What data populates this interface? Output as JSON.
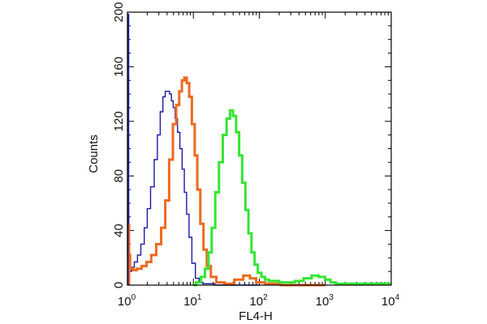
{
  "chart_data": {
    "type": "line",
    "title": "",
    "xlabel": "FL4-H",
    "ylabel": "Counts",
    "xscale": "log",
    "xlim": [
      1,
      10000
    ],
    "ylim": [
      0,
      200
    ],
    "x_ticks": [
      {
        "base": "10",
        "exp": "0",
        "value": 1
      },
      {
        "base": "10",
        "exp": "1",
        "value": 10
      },
      {
        "base": "10",
        "exp": "2",
        "value": 100
      },
      {
        "base": "10",
        "exp": "3",
        "value": 1000
      },
      {
        "base": "10",
        "exp": "4",
        "value": 10000
      }
    ],
    "y_ticks": [
      {
        "label": "0",
        "value": 0
      },
      {
        "label": "40",
        "value": 40
      },
      {
        "label": "80",
        "value": 80
      },
      {
        "label": "120",
        "value": 120
      },
      {
        "label": "160",
        "value": 160
      },
      {
        "label": "200",
        "value": 200
      }
    ],
    "grid": false,
    "legend": "none",
    "series": [
      {
        "color": "#1a1aa8",
        "stroke": "thin",
        "x": [
          1.0,
          1.1,
          1.2,
          1.35,
          1.5,
          1.7,
          1.9,
          2.1,
          2.4,
          2.7,
          3.0,
          3.3,
          3.6,
          3.9,
          4.2,
          4.5,
          4.8,
          5.1,
          5.5,
          6.0,
          6.5,
          7.0,
          7.6,
          8.2,
          9.0,
          10.0,
          11.5,
          13.0,
          15.0,
          18.0,
          25.0,
          40.0,
          100.0
        ],
        "y": [
          4,
          10,
          13,
          17,
          22,
          30,
          42,
          56,
          72,
          92,
          110,
          127,
          138,
          142,
          142,
          140,
          135,
          130,
          122,
          112,
          100,
          85,
          68,
          52,
          35,
          16,
          5,
          2,
          1,
          1,
          0,
          0,
          0
        ]
      },
      {
        "color": "#ee6a20",
        "stroke": "thick",
        "x": [
          1.0,
          1.05,
          1.15,
          1.3,
          1.5,
          1.8,
          2.1,
          2.5,
          3.0,
          3.5,
          4.0,
          4.6,
          5.2,
          5.8,
          6.4,
          7.0,
          7.6,
          8.3,
          9.0,
          10.0,
          11.0,
          12.0,
          13.5,
          15.0,
          17.0,
          20.0,
          25.0,
          35.0,
          50.0,
          65.0,
          80.0,
          100.0,
          150.0,
          300.0,
          1000.0
        ],
        "y": [
          60,
          22,
          12,
          11,
          12,
          14,
          17,
          22,
          30,
          42,
          62,
          92,
          118,
          132,
          142,
          150,
          152,
          148,
          138,
          118,
          95,
          70,
          45,
          26,
          14,
          6,
          2,
          1,
          4,
          7,
          5,
          2,
          1,
          0,
          0
        ]
      },
      {
        "color": "#33e633",
        "stroke": "thick",
        "x": [
          10.0,
          12.0,
          14.0,
          16.0,
          18.0,
          20.0,
          23.0,
          26.0,
          30.0,
          34.0,
          38.0,
          42.0,
          47.0,
          52.0,
          58.0,
          65.0,
          72.0,
          80.0,
          90.0,
          100.0,
          115.0,
          130.0,
          150.0,
          180.0,
          220.0,
          300.0,
          400.0,
          550.0,
          700.0,
          900.0,
          1100.0,
          1300.0,
          1600.0,
          2000.0,
          3000.0,
          5000.0,
          10000.0
        ],
        "y": [
          0,
          2,
          6,
          12,
          24,
          42,
          68,
          90,
          110,
          122,
          128,
          124,
          112,
          95,
          75,
          55,
          38,
          24,
          15,
          9,
          6,
          4,
          3,
          3,
          2,
          2,
          3,
          5,
          7,
          6,
          4,
          2,
          1,
          1,
          1,
          1,
          1
        ]
      }
    ]
  }
}
